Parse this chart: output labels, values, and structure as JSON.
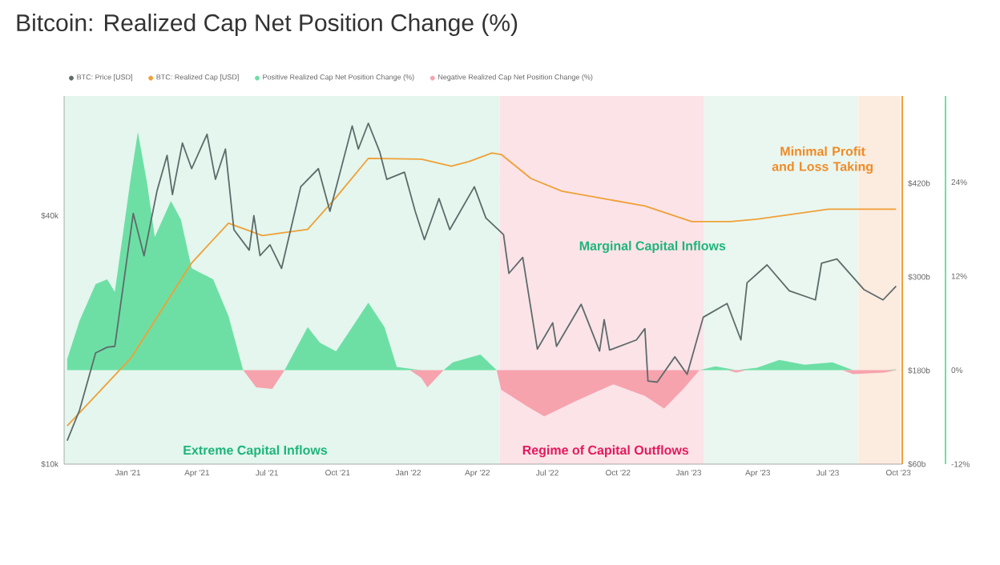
{
  "chart_data": {
    "type": "line",
    "title": "Bitcoin: Realized Cap Net Position Change (%)",
    "xlim": [
      "2020-10-10",
      "2023-10-06"
    ],
    "xticks": [
      {
        "value": "2021-01-01",
        "label": "Jan '21"
      },
      {
        "value": "2021-04-01",
        "label": "Apr '21"
      },
      {
        "value": "2021-07-01",
        "label": "Jul '21"
      },
      {
        "value": "2021-10-01",
        "label": "Oct '21"
      },
      {
        "value": "2022-01-01",
        "label": "Jan '22"
      },
      {
        "value": "2022-04-01",
        "label": "Apr '22"
      },
      {
        "value": "2022-07-01",
        "label": "Jul '22"
      },
      {
        "value": "2022-10-01",
        "label": "Oct '22"
      },
      {
        "value": "2023-01-01",
        "label": "Jan '23"
      },
      {
        "value": "2023-04-01",
        "label": "Apr '23"
      },
      {
        "value": "2023-07-01",
        "label": "Jul '23"
      },
      {
        "value": "2023-10-01",
        "label": "Oct '23"
      }
    ],
    "log": "y",
    "ylim": [
      10000,
      78000
    ],
    "yticks": [
      {
        "value": 10000,
        "label": "$10k"
      },
      {
        "value": 40000,
        "label": "$40k"
      }
    ],
    "y2lim": [
      60,
      532
    ],
    "y2ticks": [
      {
        "value": 60,
        "label": "$60b"
      },
      {
        "value": 180,
        "label": "$180b"
      },
      {
        "value": 300,
        "label": "$300b"
      },
      {
        "value": 420,
        "label": "$420b"
      }
    ],
    "y3lim": [
      -12,
      35
    ],
    "y3ticks": [
      {
        "value": -12,
        "label": "-12%"
      },
      {
        "value": 0,
        "label": "0%"
      },
      {
        "value": 12,
        "label": "12%"
      },
      {
        "value": 24,
        "label": "24%"
      }
    ],
    "grid": "y",
    "legend": "top",
    "bands": [
      {
        "axis": "x",
        "from": "2020-10-10",
        "to": "2022-04-30",
        "color": "#e4f6ee"
      },
      {
        "axis": "x",
        "from": "2022-04-30",
        "to": "2023-01-21",
        "color": "#fbe3e8"
      },
      {
        "axis": "x",
        "from": "2023-01-21",
        "to": "2023-08-10",
        "color": "#e9f7f0"
      },
      {
        "axis": "x",
        "from": "2023-08-10",
        "to": "2023-10-04",
        "color": "#fcebdf"
      }
    ],
    "annotations": [
      "Extreme Capital Inflows",
      "Regime of Capital Outflows",
      "Marginal Capital Inflows",
      "Minimal Profit and Loss Taking"
    ],
    "series": [
      {
        "name": "BTC: Price [USD]",
        "color": "#5d6b6a",
        "x": [
          "2020-10-14",
          "2020-10-30",
          "2020-11-20",
          "2020-12-05",
          "2020-12-15",
          "2021-01-08",
          "2021-01-22",
          "2021-02-08",
          "2021-02-21",
          "2021-02-28",
          "2021-03-13",
          "2021-03-25",
          "2021-04-14",
          "2021-04-25",
          "2021-05-08",
          "2021-05-19",
          "2021-06-08",
          "2021-06-14",
          "2021-06-22",
          "2021-07-05",
          "2021-07-20",
          "2021-08-14",
          "2021-09-06",
          "2021-09-21",
          "2021-10-20",
          "2021-10-28",
          "2021-11-10",
          "2021-11-25",
          "2021-12-04",
          "2021-12-27",
          "2022-01-10",
          "2022-01-22",
          "2022-02-10",
          "2022-02-24",
          "2022-03-28",
          "2022-04-12",
          "2022-05-05",
          "2022-05-12",
          "2022-05-30",
          "2022-06-18",
          "2022-07-08",
          "2022-07-13",
          "2022-08-14",
          "2022-09-07",
          "2022-09-13",
          "2022-09-20",
          "2022-10-25",
          "2022-11-05",
          "2022-11-09",
          "2022-11-21",
          "2022-12-14",
          "2022-12-30",
          "2023-01-20",
          "2023-02-20",
          "2023-03-10",
          "2023-03-18",
          "2023-04-13",
          "2023-05-12",
          "2023-06-15",
          "2023-06-23",
          "2023-07-13",
          "2023-08-17",
          "2023-09-11",
          "2023-09-28"
        ],
        "values": [
          11400,
          13500,
          18600,
          19200,
          19300,
          40500,
          32000,
          46000,
          56000,
          45000,
          60000,
          52000,
          63000,
          49000,
          58000,
          37000,
          33000,
          40000,
          32000,
          34000,
          29800,
          47000,
          52000,
          41000,
          66000,
          58000,
          67000,
          57000,
          49000,
          51000,
          41000,
          35000,
          44000,
          37000,
          47000,
          39500,
          36000,
          29000,
          31700,
          19000,
          22000,
          19300,
          24400,
          18800,
          22400,
          18900,
          20000,
          21300,
          15900,
          15800,
          18200,
          16500,
          22700,
          24500,
          20000,
          27500,
          30400,
          26300,
          25000,
          30700,
          31400,
          26500,
          25000,
          27000
        ]
      },
      {
        "name": "BTC: Realized Cap [USD]",
        "axis": "y2",
        "color": "#f0a035",
        "x": [
          "2020-10-14",
          "2021-01-05",
          "2021-03-25",
          "2021-05-12",
          "2021-06-25",
          "2021-08-23",
          "2021-09-29",
          "2021-11-10",
          "2022-01-18",
          "2022-02-26",
          "2022-03-21",
          "2022-04-20",
          "2022-05-02",
          "2022-06-10",
          "2022-07-20",
          "2022-11-05",
          "2023-01-05",
          "2023-02-24",
          "2023-03-31",
          "2023-07-02",
          "2023-09-28"
        ],
        "values": [
          109,
          196,
          318,
          369,
          353,
          361,
          402,
          452,
          451,
          442,
          448,
          459,
          457,
          426,
          410,
          391,
          371,
          371,
          374,
          387,
          387
        ]
      },
      {
        "name": "Positive Realized Cap Net Position Change (%)",
        "type": "area",
        "axis": "y3",
        "color": "#6ddfa5",
        "x": [
          "2020-10-14",
          "2020-10-30",
          "2020-11-20",
          "2020-12-05",
          "2020-12-15",
          "2021-01-05",
          "2021-01-14",
          "2021-01-26",
          "2021-02-05",
          "2021-02-26",
          "2021-03-11",
          "2021-03-25",
          "2021-04-22",
          "2021-05-12",
          "2021-05-31",
          "2021-06-17",
          "2021-07-08",
          "2021-07-24",
          "2021-08-23",
          "2021-09-08",
          "2021-09-29",
          "2021-10-20",
          "2021-11-10",
          "2021-12-01",
          "2021-12-17",
          "2022-01-18",
          "2022-01-26",
          "2022-02-16",
          "2022-02-28",
          "2022-04-05",
          "2022-04-26",
          "2022-05-02",
          "2023-01-15",
          "2023-02-05",
          "2023-03-04",
          "2023-03-31",
          "2023-04-29",
          "2023-06-01",
          "2023-07-07",
          "2023-08-03",
          "2023-09-13",
          "2023-09-28"
        ],
        "values": [
          1.4,
          6.3,
          11,
          11.6,
          10,
          24.7,
          30.4,
          23.9,
          17,
          21.6,
          19.2,
          13,
          11.6,
          6.9,
          0,
          0,
          0,
          0,
          5.5,
          3.5,
          2.4,
          5.5,
          8.6,
          5.5,
          0.4,
          0,
          0,
          0,
          1,
          2,
          0,
          0,
          0,
          0.5,
          0,
          0.3,
          1.3,
          0.7,
          1,
          0,
          0,
          0.1
        ]
      },
      {
        "name": "Negative Realized Cap Net Position Change (%)",
        "type": "area",
        "axis": "y3",
        "color": "#f6a3ae",
        "x": [
          "2021-05-31",
          "2021-06-17",
          "2021-07-08",
          "2021-07-24",
          "2022-01-03",
          "2022-01-18",
          "2022-01-26",
          "2022-02-16",
          "2022-04-26",
          "2022-05-02",
          "2022-06-06",
          "2022-06-27",
          "2022-08-08",
          "2022-09-25",
          "2022-11-05",
          "2022-11-30",
          "2022-12-25",
          "2023-01-15",
          "2023-02-20",
          "2023-03-04",
          "2023-03-18",
          "2023-07-20",
          "2023-08-03",
          "2023-09-13",
          "2023-09-28"
        ],
        "values": [
          0,
          -2.2,
          -2.4,
          0,
          0,
          -1,
          -2.2,
          0,
          0,
          -2.5,
          -4.7,
          -5.9,
          -3.9,
          -1.8,
          -3.3,
          -4.9,
          -2.4,
          0,
          0,
          -0.3,
          0,
          0,
          -0.5,
          -0.3,
          0
        ]
      }
    ]
  }
}
